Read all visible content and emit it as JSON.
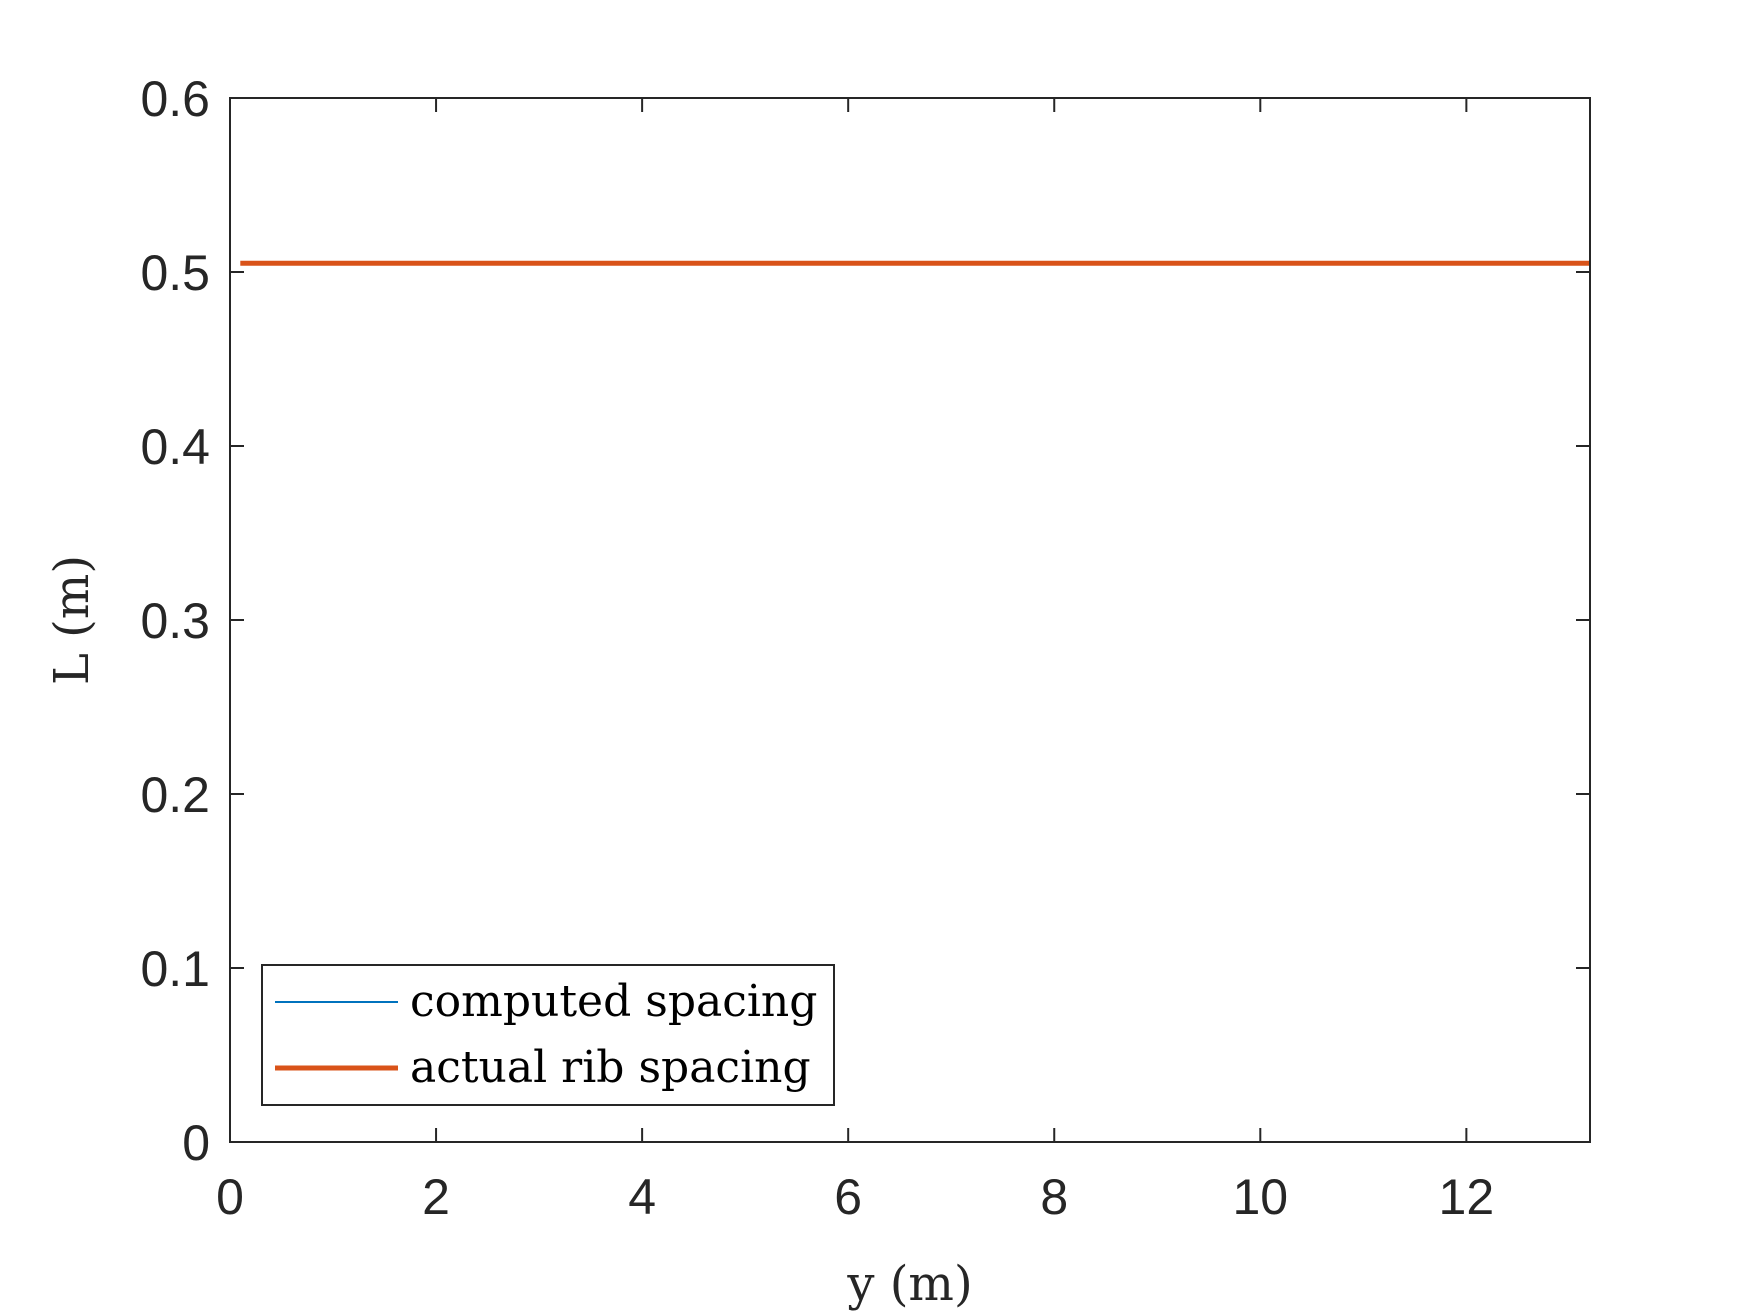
{
  "chart_data": {
    "type": "line",
    "title": "",
    "xlabel": "y (m)",
    "ylabel": "L (m)",
    "xlim": [
      0,
      13.2
    ],
    "ylim": [
      0,
      0.6
    ],
    "xticks": [
      0,
      2,
      4,
      6,
      8,
      10,
      12
    ],
    "yticks": [
      0,
      0.1,
      0.2,
      0.3,
      0.4,
      0.5,
      0.6
    ],
    "xtick_labels": [
      "0",
      "2",
      "4",
      "6",
      "8",
      "10",
      "12"
    ],
    "ytick_labels": [
      "0",
      "0.1",
      "0.2",
      "0.3",
      "0.4",
      "0.5",
      "0.6"
    ],
    "grid": false,
    "legend_position": "bottom-left",
    "series": [
      {
        "name": "computed spacing",
        "color": "#0072BD",
        "x": [
          0,
          13.2
        ],
        "y": [
          0,
          0
        ]
      },
      {
        "name": "actual rib spacing",
        "color": "#D95319",
        "x": [
          0.1,
          13.2
        ],
        "y": [
          0.505,
          0.505
        ]
      }
    ]
  }
}
